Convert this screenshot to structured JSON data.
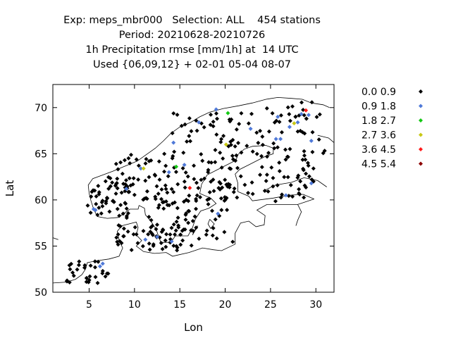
{
  "title_lines": [
    "Exp: meps_mbr000   Selection: ALL    454 stations",
    "Period: 20210628-20210726",
    "1h Precipitation rmse [mm/1h] at  14 UTC",
    "Used {06,09,12} + 02-01 05-04 08-07"
  ],
  "chart_data": {
    "type": "scatter",
    "title": "Exp: meps_mbr000   Selection: ALL    454 stations",
    "xlabel": "Lon",
    "ylabel": "Lat",
    "xlim": [
      1,
      32
    ],
    "ylim": [
      50,
      72.5
    ],
    "xticks": [
      5,
      10,
      15,
      20,
      25,
      30
    ],
    "yticks": [
      50,
      55,
      60,
      65,
      70
    ],
    "grid": false,
    "legend_position": "right",
    "legend": [
      {
        "label": "0.0 0.9",
        "color": "#000000"
      },
      {
        "label": "0.9 1.8",
        "color": "#4f79d8"
      },
      {
        "label": "1.8 2.7",
        "color": "#14c814"
      },
      {
        "label": "2.7 3.6",
        "color": "#c8c814"
      },
      {
        "label": "3.6 4.5",
        "color": "#ff1a1a"
      },
      {
        "label": "4.5 5.4",
        "color": "#8c0000"
      }
    ],
    "series": [
      {
        "name": "0.9 1.8",
        "color": "#4f79d8",
        "points": [
          [
            19,
            69.8
          ],
          [
            25.8,
            69.0
          ],
          [
            28.4,
            69.3
          ],
          [
            29.2,
            69.2
          ],
          [
            27.1,
            67.9
          ],
          [
            28.0,
            68.4
          ],
          [
            25.6,
            66.6
          ],
          [
            26.1,
            66.6
          ],
          [
            29.5,
            66.4
          ],
          [
            22.8,
            67.7
          ],
          [
            17.1,
            68.4
          ],
          [
            14.3,
            66.2
          ],
          [
            10.7,
            63.4
          ],
          [
            13.8,
            63.0
          ],
          [
            15.5,
            63.8
          ],
          [
            9.1,
            61.2
          ],
          [
            5.5,
            59.0
          ],
          [
            5.7,
            58.9
          ],
          [
            6.5,
            53.1
          ],
          [
            6.2,
            52.8
          ],
          [
            19.2,
            58.5
          ],
          [
            14.1,
            55.5
          ],
          [
            11.2,
            55.7
          ],
          [
            12.5,
            56.0
          ],
          [
            26.7,
            60.5
          ],
          [
            29.5,
            61.8
          ]
        ]
      },
      {
        "name": "1.8 2.7",
        "color": "#14c814",
        "points": [
          [
            20.3,
            69.4
          ],
          [
            14.6,
            63.6
          ]
        ]
      },
      {
        "name": "2.7 3.6",
        "color": "#c8c814",
        "points": [
          [
            27.6,
            68.3
          ],
          [
            20.1,
            66.0
          ],
          [
            11.0,
            63.4
          ]
        ]
      },
      {
        "name": "3.6 4.5",
        "color": "#ff1a1a",
        "points": [
          [
            28.9,
            69.7
          ],
          [
            16.1,
            61.3
          ]
        ]
      },
      {
        "name": "4.5 5.4",
        "color": "#8c0000",
        "points": []
      }
    ],
    "black_clusters": [
      {
        "lon": [
          24,
          31
        ],
        "lat": [
          60.2,
          70.6
        ],
        "n": 70
      },
      {
        "lon": [
          20,
          25
        ],
        "lat": [
          62.5,
          69.5
        ],
        "n": 28
      },
      {
        "lon": [
          14,
          21
        ],
        "lat": [
          55,
          69.5
        ],
        "n": 95
      },
      {
        "lon": [
          11.5,
          17
        ],
        "lat": [
          56,
          64
        ],
        "n": 48
      },
      {
        "lon": [
          7.5,
          14
        ],
        "lat": [
          60,
          65
        ],
        "n": 40
      },
      {
        "lon": [
          4.8,
          9.5
        ],
        "lat": [
          58,
          62.5
        ],
        "n": 55
      },
      {
        "lon": [
          8,
          15.5
        ],
        "lat": [
          54.5,
          57.5
        ],
        "n": 48
      },
      {
        "lon": [
          2.5,
          7.2
        ],
        "lat": [
          51,
          53.6
        ],
        "n": 30
      },
      {
        "lon": [
          18,
          29
        ],
        "lat": [
          59.8,
          62.6
        ],
        "n": 30
      }
    ]
  }
}
